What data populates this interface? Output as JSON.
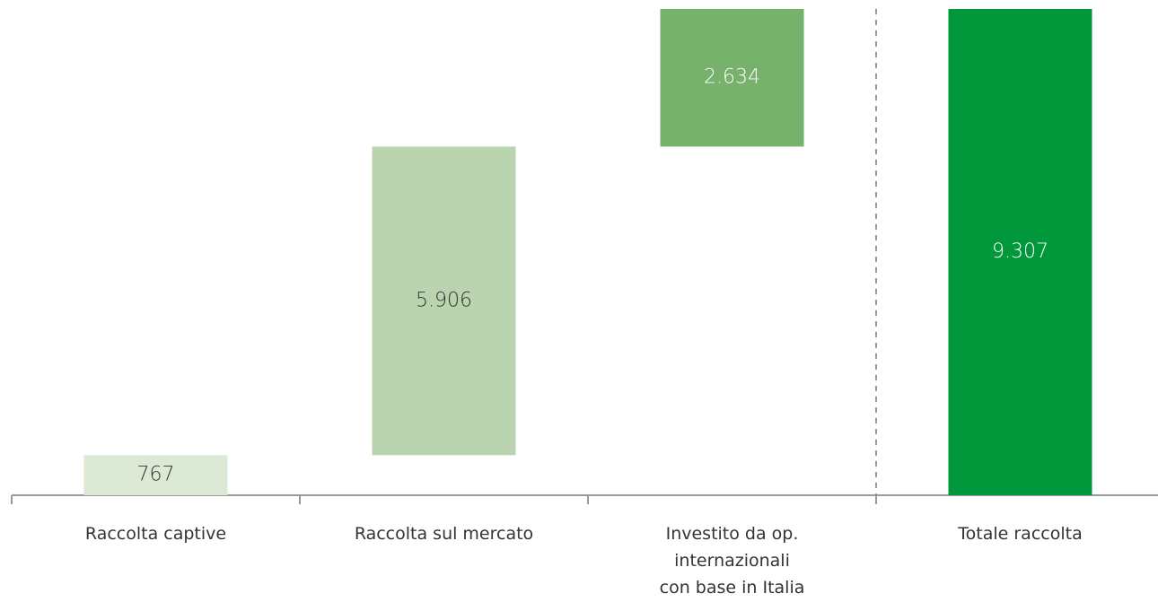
{
  "chart_data": {
    "type": "waterfall",
    "categories": [
      "Raccolta captive",
      "Raccolta sul mercato",
      "Investito da op.\ninternazionali\ncon base in Italia",
      "Totale raccolta"
    ],
    "values": [
      767,
      5906,
      2634,
      9307
    ],
    "value_labels": [
      "767",
      "5.906",
      "2.634",
      "9.307"
    ],
    "measure": [
      "relative",
      "relative",
      "relative",
      "total"
    ],
    "colors": [
      "#dce9d5",
      "#bbd4b0",
      "#77b26c",
      "#00983a"
    ],
    "ylim": [
      0,
      9307
    ]
  }
}
